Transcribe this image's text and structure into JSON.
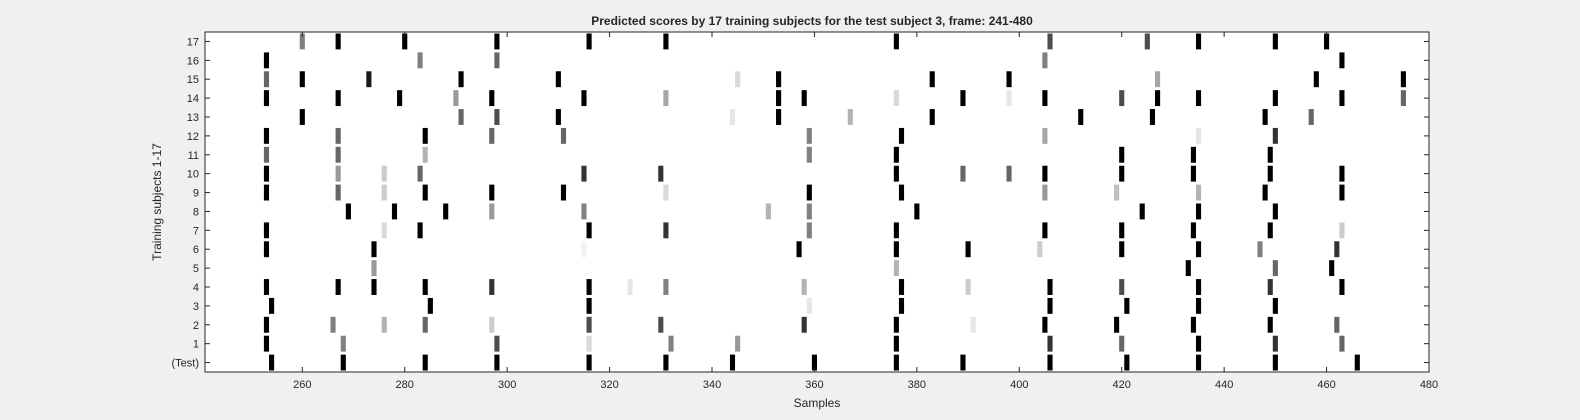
{
  "chart_data": {
    "type": "heatmap",
    "title": "Predicted scores by 17 training subjects for the test subject 3, frame: 241-480",
    "xlabel": "Samples",
    "ylabel": "Training subjects 1-17",
    "xlim": [
      241,
      480
    ],
    "x_ticks": [
      260,
      280,
      300,
      320,
      340,
      360,
      380,
      400,
      420,
      440,
      460,
      480
    ],
    "row_labels": [
      "17",
      "16",
      "15",
      "14",
      "13",
      "12",
      "11",
      "10",
      "9",
      "8",
      "7",
      "6",
      "5",
      "4",
      "3",
      "2",
      "1",
      "(Test)"
    ],
    "colormap": "gray-inverted (white = 0, black = 1)",
    "grid": false,
    "rows": [
      {
        "label": "17",
        "marks": [
          [
            260,
            0.5
          ],
          [
            267,
            1
          ],
          [
            280,
            1
          ],
          [
            298,
            1
          ],
          [
            316,
            1
          ],
          [
            331,
            1
          ],
          [
            376,
            1
          ],
          [
            406,
            0.7
          ],
          [
            425,
            0.7
          ],
          [
            435,
            1
          ],
          [
            450,
            1
          ],
          [
            460,
            1
          ]
        ]
      },
      {
        "label": "16",
        "marks": [
          [
            253,
            1
          ],
          [
            283,
            0.5
          ],
          [
            298,
            0.6
          ],
          [
            405,
            0.5
          ],
          [
            463,
            1
          ]
        ]
      },
      {
        "label": "15",
        "marks": [
          [
            253,
            0.6
          ],
          [
            260,
            1
          ],
          [
            273,
            0.9
          ],
          [
            291,
            1
          ],
          [
            310,
            1
          ],
          [
            345,
            0.15
          ],
          [
            353,
            1
          ],
          [
            383,
            1
          ],
          [
            398,
            1
          ],
          [
            427,
            0.35
          ],
          [
            458,
            1
          ],
          [
            475,
            1
          ]
        ]
      },
      {
        "label": "14",
        "marks": [
          [
            253,
            1
          ],
          [
            267,
            1
          ],
          [
            279,
            1
          ],
          [
            290,
            0.4
          ],
          [
            297,
            1
          ],
          [
            315,
            1
          ],
          [
            331,
            0.35
          ],
          [
            353,
            1
          ],
          [
            358,
            1
          ],
          [
            376,
            0.15
          ],
          [
            389,
            1
          ],
          [
            398,
            0.1
          ],
          [
            405,
            1
          ],
          [
            420,
            0.7
          ],
          [
            427,
            1
          ],
          [
            435,
            1
          ],
          [
            450,
            1
          ],
          [
            463,
            1
          ],
          [
            475,
            0.6
          ]
        ]
      },
      {
        "label": "13",
        "marks": [
          [
            260,
            1
          ],
          [
            291,
            0.6
          ],
          [
            298,
            0.7
          ],
          [
            310,
            1
          ],
          [
            344,
            0.1
          ],
          [
            353,
            1
          ],
          [
            367,
            0.3
          ],
          [
            383,
            1
          ],
          [
            412,
            1
          ],
          [
            426,
            1
          ],
          [
            448,
            1
          ],
          [
            457,
            0.6
          ]
        ]
      },
      {
        "label": "12",
        "marks": [
          [
            253,
            1
          ],
          [
            267,
            0.6
          ],
          [
            284,
            1
          ],
          [
            297,
            0.6
          ],
          [
            311,
            0.6
          ],
          [
            359,
            0.5
          ],
          [
            377,
            1
          ],
          [
            405,
            0.35
          ],
          [
            435,
            0.1
          ],
          [
            450,
            0.8
          ]
        ]
      },
      {
        "label": "11",
        "marks": [
          [
            253,
            0.6
          ],
          [
            267,
            0.6
          ],
          [
            284,
            0.3
          ],
          [
            359,
            0.5
          ],
          [
            376,
            1
          ],
          [
            420,
            1
          ],
          [
            434,
            1
          ],
          [
            449,
            1
          ]
        ]
      },
      {
        "label": "10",
        "marks": [
          [
            253,
            1
          ],
          [
            267,
            0.4
          ],
          [
            276,
            0.2
          ],
          [
            283,
            0.6
          ],
          [
            315,
            0.8
          ],
          [
            330,
            0.8
          ],
          [
            376,
            1
          ],
          [
            389,
            0.6
          ],
          [
            398,
            0.6
          ],
          [
            405,
            1
          ],
          [
            420,
            1
          ],
          [
            434,
            1
          ],
          [
            449,
            1
          ],
          [
            463,
            1
          ]
        ]
      },
      {
        "label": "9",
        "marks": [
          [
            253,
            1
          ],
          [
            267,
            0.6
          ],
          [
            276,
            0.2
          ],
          [
            284,
            1
          ],
          [
            297,
            1
          ],
          [
            311,
            1
          ],
          [
            331,
            0.15
          ],
          [
            359,
            1
          ],
          [
            377,
            1
          ],
          [
            405,
            0.4
          ],
          [
            419,
            0.25
          ],
          [
            435,
            0.3
          ],
          [
            448,
            1
          ],
          [
            463,
            1
          ]
        ]
      },
      {
        "label": "8",
        "marks": [
          [
            269,
            1
          ],
          [
            278,
            1
          ],
          [
            288,
            1
          ],
          [
            297,
            0.4
          ],
          [
            315,
            0.5
          ],
          [
            351,
            0.3
          ],
          [
            359,
            0.5
          ],
          [
            380,
            1
          ],
          [
            424,
            1
          ],
          [
            435,
            1
          ],
          [
            450,
            1
          ]
        ]
      },
      {
        "label": "7",
        "marks": [
          [
            253,
            1
          ],
          [
            276,
            0.15
          ],
          [
            283,
            1
          ],
          [
            316,
            1
          ],
          [
            331,
            0.8
          ],
          [
            359,
            0.5
          ],
          [
            376,
            1
          ],
          [
            405,
            1
          ],
          [
            420,
            1
          ],
          [
            434,
            1
          ],
          [
            449,
            1
          ],
          [
            463,
            0.2
          ]
        ]
      },
      {
        "label": "6",
        "marks": [
          [
            253,
            1
          ],
          [
            274,
            1
          ],
          [
            315,
            0.05
          ],
          [
            357,
            1
          ],
          [
            376,
            1
          ],
          [
            390,
            1
          ],
          [
            404,
            0.2
          ],
          [
            420,
            1
          ],
          [
            435,
            1
          ],
          [
            447,
            0.5
          ],
          [
            462,
            0.8
          ]
        ]
      },
      {
        "label": "5",
        "marks": [
          [
            274,
            0.4
          ],
          [
            376,
            0.3
          ],
          [
            433,
            1
          ],
          [
            450,
            0.6
          ],
          [
            461,
            1
          ]
        ]
      },
      {
        "label": "4",
        "marks": [
          [
            253,
            1
          ],
          [
            267,
            1
          ],
          [
            274,
            1
          ],
          [
            284,
            1
          ],
          [
            297,
            0.8
          ],
          [
            316,
            1
          ],
          [
            324,
            0.1
          ],
          [
            331,
            0.5
          ],
          [
            358,
            0.3
          ],
          [
            377,
            1
          ],
          [
            390,
            0.2
          ],
          [
            406,
            1
          ],
          [
            420,
            0.7
          ],
          [
            435,
            1
          ],
          [
            449,
            0.8
          ],
          [
            463,
            1
          ]
        ]
      },
      {
        "label": "3",
        "marks": [
          [
            254,
            1
          ],
          [
            285,
            1
          ],
          [
            316,
            1
          ],
          [
            359,
            0.1
          ],
          [
            377,
            1
          ],
          [
            406,
            1
          ],
          [
            421,
            1
          ],
          [
            435,
            1
          ],
          [
            450,
            1
          ]
        ]
      },
      {
        "label": "2",
        "marks": [
          [
            253,
            1
          ],
          [
            266,
            0.5
          ],
          [
            276,
            0.3
          ],
          [
            284,
            0.6
          ],
          [
            297,
            0.2
          ],
          [
            316,
            0.7
          ],
          [
            330,
            0.7
          ],
          [
            358,
            0.8
          ],
          [
            376,
            1
          ],
          [
            391,
            0.1
          ],
          [
            405,
            1
          ],
          [
            419,
            1
          ],
          [
            434,
            1
          ],
          [
            449,
            1
          ],
          [
            462,
            0.6
          ]
        ]
      },
      {
        "label": "1",
        "marks": [
          [
            253,
            1
          ],
          [
            268,
            0.5
          ],
          [
            298,
            0.7
          ],
          [
            316,
            0.15
          ],
          [
            332,
            0.5
          ],
          [
            345,
            0.4
          ],
          [
            376,
            1
          ],
          [
            406,
            0.8
          ],
          [
            420,
            0.6
          ],
          [
            435,
            1
          ],
          [
            450,
            0.8
          ],
          [
            463,
            0.6
          ]
        ]
      },
      {
        "label": "(Test)",
        "marks": [
          [
            254,
            1
          ],
          [
            268,
            1
          ],
          [
            284,
            1
          ],
          [
            298,
            1
          ],
          [
            316,
            1
          ],
          [
            331,
            1
          ],
          [
            344,
            1
          ],
          [
            360,
            1
          ],
          [
            376,
            1
          ],
          [
            389,
            1
          ],
          [
            406,
            1
          ],
          [
            421,
            1
          ],
          [
            435,
            1
          ],
          [
            450,
            1
          ],
          [
            466,
            1
          ]
        ]
      }
    ]
  }
}
